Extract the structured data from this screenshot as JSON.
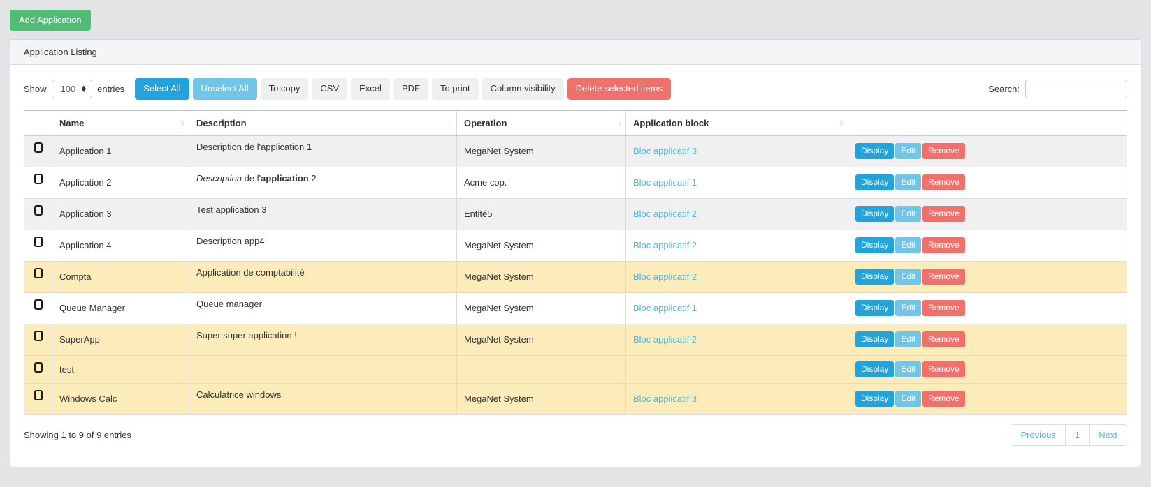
{
  "page": {
    "add_application_label": "Add Application"
  },
  "panel": {
    "title": "Application Listing"
  },
  "toolbar": {
    "show_label": "Show",
    "show_value": "100",
    "entries_label": "entries",
    "buttons": [
      {
        "label": "Select All",
        "style": "primary"
      },
      {
        "label": "Unselect All",
        "style": "info"
      },
      {
        "label": "To copy",
        "style": "default"
      },
      {
        "label": "CSV",
        "style": "default"
      },
      {
        "label": "Excel",
        "style": "default"
      },
      {
        "label": "PDF",
        "style": "default"
      },
      {
        "label": "To print",
        "style": "default"
      },
      {
        "label": "Column visibility",
        "style": "default"
      },
      {
        "label": "Delete selected items",
        "style": "danger"
      }
    ],
    "search_label": "Search:",
    "search_value": ""
  },
  "table": {
    "columns": [
      {
        "label": "",
        "sortable": false
      },
      {
        "label": "Name",
        "sortable": true
      },
      {
        "label": "Description",
        "sortable": true
      },
      {
        "label": "Operation",
        "sortable": true
      },
      {
        "label": "Application block",
        "sortable": true
      },
      {
        "label": "",
        "sortable": false
      }
    ],
    "sort_icon": "↑↓",
    "action_buttons": [
      {
        "label": "Display",
        "style": "primary"
      },
      {
        "label": "Edit",
        "style": "info"
      },
      {
        "label": "Remove",
        "style": "danger"
      }
    ],
    "rows": [
      {
        "name": "Application 1",
        "description": [
          {
            "text": "Description de l'application 1"
          }
        ],
        "operation": "MegaNet System",
        "block": "Bloc applicatif 3",
        "highlighted": false
      },
      {
        "name": "Application 2",
        "description": [
          {
            "text": "Description",
            "italic": true
          },
          {
            "text": " de l'"
          },
          {
            "text": "application",
            "bold": true
          },
          {
            "text": " 2"
          }
        ],
        "operation": "Acme cop.",
        "block": "Bloc applicatif 1",
        "highlighted": false
      },
      {
        "name": "Application 3",
        "description": [
          {
            "text": "Test application 3"
          }
        ],
        "operation": "Entité5",
        "block": "Bloc applicatif 2",
        "highlighted": false
      },
      {
        "name": "Application 4",
        "description": [
          {
            "text": "Description app4"
          }
        ],
        "operation": "MegaNet System",
        "block": "Bloc applicatif 2",
        "highlighted": false
      },
      {
        "name": "Compta",
        "description": [
          {
            "text": "Application de comptabilité"
          }
        ],
        "operation": "MegaNet System",
        "block": "Bloc applicatif 2",
        "highlighted": true
      },
      {
        "name": "Queue Manager",
        "description": [
          {
            "text": "Queue manager"
          }
        ],
        "operation": "MegaNet System",
        "block": "Bloc applicatif 1",
        "highlighted": false
      },
      {
        "name": "SuperApp",
        "description": [
          {
            "text": "Super super application !"
          }
        ],
        "operation": "MegaNet System",
        "block": "Bloc applicatif 2",
        "highlighted": true
      },
      {
        "name": "test",
        "description": [],
        "operation": "",
        "block": "",
        "highlighted": true
      },
      {
        "name": "Windows Calc",
        "description": [
          {
            "text": "Calculatrice windows"
          }
        ],
        "operation": "MegaNet System",
        "block": "Bloc applicatif 3",
        "highlighted": true
      }
    ]
  },
  "footer": {
    "info": "Showing 1 to 9 of 9 entries",
    "pagination": [
      "Previous",
      "1",
      "Next"
    ]
  },
  "colors": {
    "page_background": "#e3e4e6",
    "success_green": "#4fbd74",
    "primary_blue": "#23a3db",
    "info_light_blue": "#71c5e8",
    "danger_red": "#f0716c",
    "link_blue": "#4ab7e0",
    "highlight_row_yellow": "#fcecba",
    "stripe_row_gray": "#f0f0f0"
  }
}
